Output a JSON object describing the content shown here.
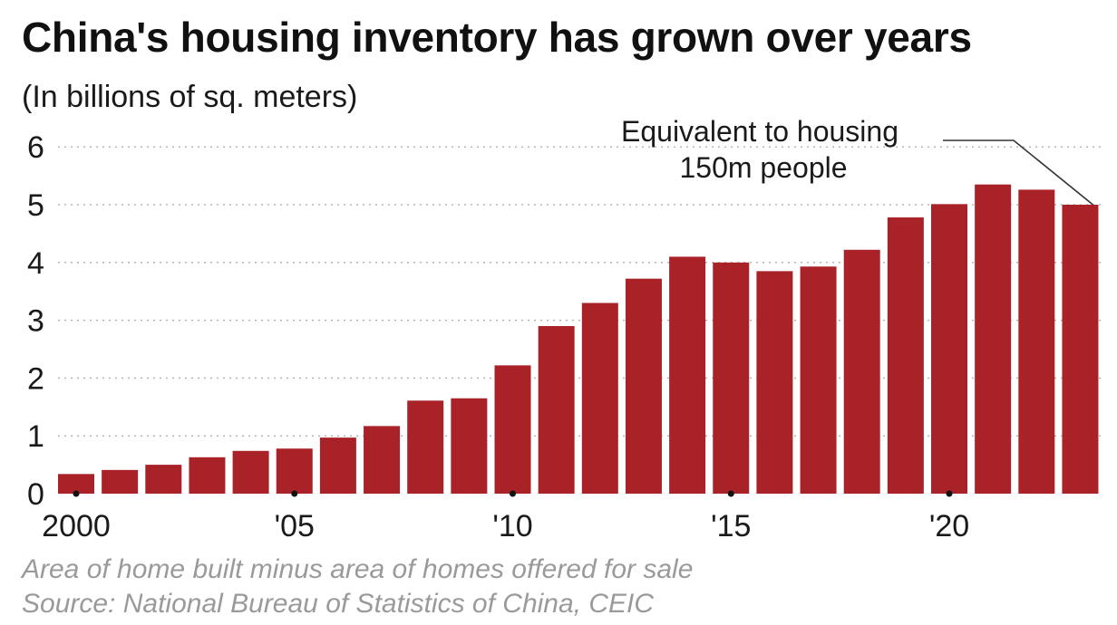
{
  "colors": {
    "bar": "#a92228",
    "grid": "#b5b5b5",
    "text": "#1a1a1a",
    "footnote": "#9a9a9a"
  },
  "chart_data": {
    "type": "bar",
    "title": "China's housing inventory has grown over years",
    "subtitle": "(In billions of sq. meters)",
    "categories": [
      "2000",
      "2001",
      "2002",
      "2003",
      "2004",
      "2005",
      "2006",
      "2007",
      "2008",
      "2009",
      "2010",
      "2011",
      "2012",
      "2013",
      "2014",
      "2015",
      "2016",
      "2017",
      "2018",
      "2019",
      "2020",
      "2021",
      "2022",
      "2023"
    ],
    "values": [
      0.34,
      0.41,
      0.5,
      0.63,
      0.74,
      0.78,
      0.97,
      1.17,
      1.61,
      1.65,
      2.22,
      2.9,
      3.3,
      3.72,
      4.1,
      4.0,
      3.85,
      3.93,
      4.22,
      4.78,
      5.01,
      5.35,
      5.26,
      5.0
    ],
    "xtick_labels": [
      {
        "category": "2000",
        "label": "2000"
      },
      {
        "category": "2005",
        "label": "'05"
      },
      {
        "category": "2010",
        "label": "'10"
      },
      {
        "category": "2015",
        "label": "'15"
      },
      {
        "category": "2020",
        "label": "'20"
      }
    ],
    "yticks": [
      0,
      1,
      2,
      3,
      4,
      5,
      6
    ],
    "ylim": [
      0,
      6
    ],
    "grid": true,
    "xlabel": "",
    "ylabel": "",
    "annotation": {
      "target_category": "2023",
      "lines": [
        "Equivalent to housing",
        "150m people"
      ]
    }
  },
  "footnotes": {
    "note": "Area of home built minus area of homes offered for sale",
    "source": "Source: National Bureau of Statistics of China, CEIC"
  }
}
